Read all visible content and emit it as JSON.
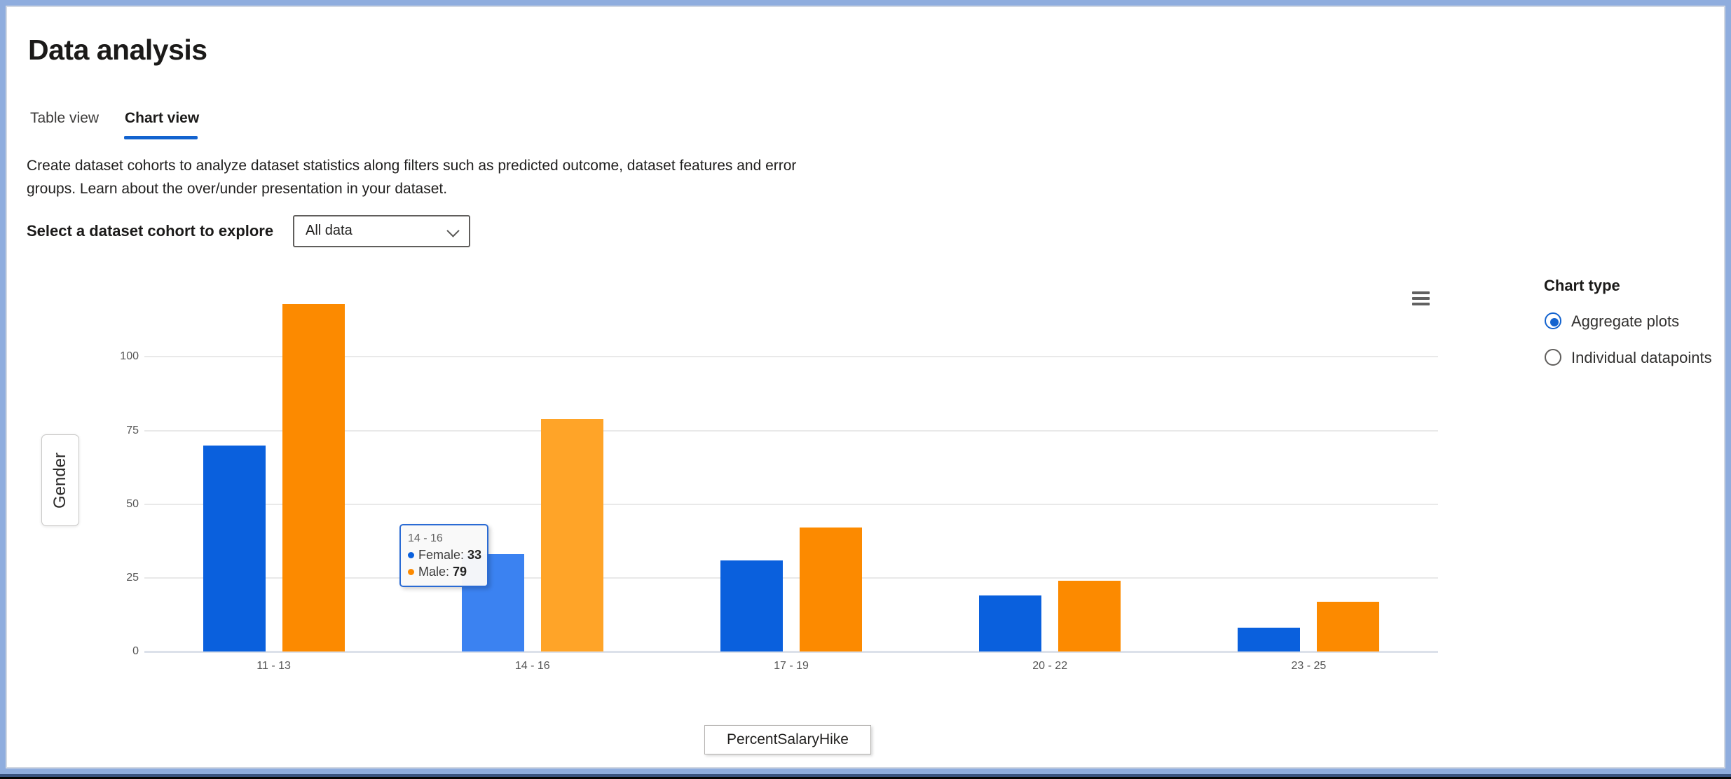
{
  "page": {
    "title": "Data analysis"
  },
  "tabs": [
    {
      "label": "Table view",
      "active": false
    },
    {
      "label": "Chart view",
      "active": true
    }
  ],
  "description": {
    "line1": "Create dataset cohorts to analyze dataset statistics along filters such as predicted outcome, dataset features and error",
    "line2": "groups. Learn about the over/under presentation in your dataset."
  },
  "cohort": {
    "label": "Select a dataset cohort to explore",
    "selected": "All data"
  },
  "axes": {
    "y_axis_button": "Gender",
    "x_axis_button": "PercentSalaryHike"
  },
  "chart_type": {
    "heading": "Chart type",
    "options": [
      {
        "label": "Aggregate plots",
        "selected": true
      },
      {
        "label": "Individual datapoints",
        "selected": false
      }
    ]
  },
  "colors": {
    "accent": "#1363cf",
    "grid": "#e9e9e9",
    "axis_line": "#dce1ea"
  },
  "chart_data": {
    "type": "bar",
    "title": "",
    "categories": [
      "11 - 13",
      "14 - 16",
      "17 - 19",
      "20 - 22",
      "23 - 25"
    ],
    "series": [
      {
        "name": "Female",
        "color": "#0a60dd",
        "hover_color": "#3b82f1",
        "values": [
          70,
          33,
          31,
          19,
          8
        ]
      },
      {
        "name": "Male",
        "color": "#fc8a00",
        "hover_color": "#ffa428",
        "values": [
          118,
          79,
          42,
          24,
          17
        ]
      }
    ],
    "xlabel": "PercentSalaryHike",
    "ylabel": "Gender",
    "ylim": [
      0,
      120
    ],
    "yticks": [
      0,
      25,
      50,
      75,
      100
    ],
    "grid": true,
    "legend": "none",
    "hovered_category_index": 1,
    "tooltip": {
      "title": "14 - 16",
      "rows": [
        {
          "label": "Female",
          "value": "33"
        },
        {
          "label": "Male",
          "value": "79"
        }
      ]
    }
  }
}
